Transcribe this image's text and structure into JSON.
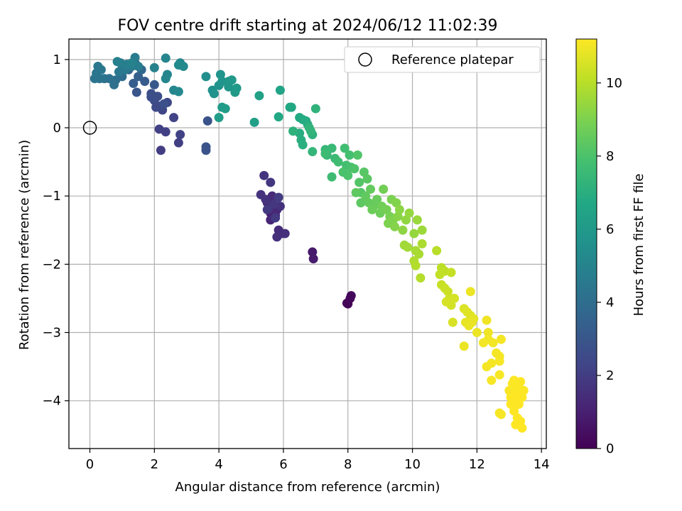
{
  "chart_data": {
    "type": "scatter",
    "title": "FOV centre drift starting at 2024/06/12 11:02:39",
    "xlabel": "Angular distance from reference (arcmin)",
    "ylabel": "Rotation from reference (arcmin)",
    "xlim": [
      -0.65,
      14.15
    ],
    "ylim": [
      -4.7,
      1.3
    ],
    "xticks": [
      0,
      2,
      4,
      6,
      8,
      10,
      12,
      14
    ],
    "yticks": [
      -4,
      -3,
      -2,
      -1,
      0,
      1
    ],
    "xtick_labels": [
      "0",
      "2",
      "4",
      "6",
      "8",
      "10",
      "12",
      "14"
    ],
    "ytick_labels": [
      "−4",
      "−3",
      "−2",
      "−1",
      "0",
      "1"
    ],
    "grid": true,
    "legend": {
      "placement": "top-right",
      "entries": [
        "Reference platepar"
      ]
    },
    "reference_point": {
      "x": 0,
      "y": 0,
      "marker": "open-circle"
    },
    "colorbar": {
      "label": "Hours from first FF file",
      "colormap": "viridis",
      "range": [
        0,
        11.2
      ],
      "ticks": [
        0,
        2,
        4,
        6,
        8,
        10
      ],
      "tick_labels": [
        "0",
        "2",
        "4",
        "6",
        "8",
        "10"
      ]
    },
    "points": [
      [
        8.0,
        -2.58,
        0.1
      ],
      [
        7.97,
        -2.57,
        0.15
      ],
      [
        8.1,
        -2.46,
        0.25
      ],
      [
        8.07,
        -2.5,
        0.2
      ],
      [
        6.9,
        -1.82,
        0.8
      ],
      [
        6.93,
        -1.92,
        0.85
      ],
      [
        5.6,
        -1.25,
        1.0
      ],
      [
        5.7,
        -1.05,
        1.1
      ],
      [
        5.8,
        -1.2,
        1.15
      ],
      [
        5.6,
        -1.35,
        1.2
      ],
      [
        5.5,
        -1.1,
        1.25
      ],
      [
        5.75,
        -1.28,
        1.3
      ],
      [
        5.65,
        -1.0,
        1.35
      ],
      [
        5.85,
        -1.5,
        1.4
      ],
      [
        5.95,
        -1.55,
        1.45
      ],
      [
        5.8,
        -1.6,
        1.5
      ],
      [
        6.05,
        -1.55,
        1.5
      ],
      [
        5.55,
        -1.18,
        1.55
      ],
      [
        5.9,
        -1.15,
        1.6
      ],
      [
        5.45,
        -1.05,
        1.6
      ],
      [
        5.3,
        -0.98,
        1.65
      ],
      [
        5.4,
        -0.7,
        1.7
      ],
      [
        5.6,
        -0.8,
        1.75
      ],
      [
        5.7,
        -1.12,
        1.8
      ],
      [
        5.5,
        -1.2,
        1.85
      ],
      [
        5.75,
        -1.32,
        1.9
      ],
      [
        5.85,
        -1.02,
        1.95
      ],
      [
        2.2,
        -0.33,
        2.0
      ],
      [
        2.75,
        -0.22,
        2.05
      ],
      [
        2.35,
        -0.06,
        2.1
      ],
      [
        2.15,
        -0.02,
        2.15
      ],
      [
        2.8,
        -0.1,
        2.2
      ],
      [
        2.6,
        0.15,
        2.25
      ],
      [
        2.25,
        0.26,
        2.3
      ],
      [
        2.4,
        0.37,
        2.4
      ],
      [
        2.2,
        0.32,
        2.45
      ],
      [
        2.05,
        0.3,
        2.5
      ],
      [
        2.0,
        0.4,
        2.55
      ],
      [
        1.9,
        0.45,
        2.6
      ],
      [
        2.1,
        0.46,
        2.65
      ],
      [
        1.9,
        0.5,
        2.7
      ],
      [
        2.3,
        0.35,
        2.75
      ],
      [
        3.6,
        -0.33,
        2.8
      ],
      [
        3.6,
        -0.28,
        2.85
      ],
      [
        3.65,
        0.1,
        2.9
      ],
      [
        1.45,
        0.52,
        3.0
      ],
      [
        2.0,
        0.63,
        3.1
      ],
      [
        1.7,
        0.68,
        3.2
      ],
      [
        1.35,
        0.65,
        3.3
      ],
      [
        1.5,
        0.75,
        3.4
      ],
      [
        1.2,
        0.85,
        3.5
      ],
      [
        1.0,
        0.92,
        3.6
      ],
      [
        1.6,
        0.85,
        3.7
      ],
      [
        1.25,
        0.9,
        3.8
      ],
      [
        1.4,
        0.95,
        3.9
      ],
      [
        1.0,
        0.75,
        4.0
      ],
      [
        0.8,
        0.7,
        4.05
      ],
      [
        0.75,
        0.63,
        4.1
      ],
      [
        0.6,
        0.72,
        4.15
      ],
      [
        0.45,
        0.72,
        4.2
      ],
      [
        0.3,
        0.72,
        4.25
      ],
      [
        0.15,
        0.72,
        4.3
      ],
      [
        0.2,
        0.8,
        4.35
      ],
      [
        0.35,
        0.85,
        4.4
      ],
      [
        0.25,
        0.9,
        4.45
      ],
      [
        0.9,
        0.82,
        4.5
      ],
      [
        1.1,
        0.85,
        4.55
      ],
      [
        1.3,
        0.9,
        4.6
      ],
      [
        1.4,
        1.03,
        4.65
      ],
      [
        1.5,
        0.9,
        4.7
      ],
      [
        1.15,
        0.93,
        4.75
      ],
      [
        0.95,
        0.95,
        4.8
      ],
      [
        0.85,
        0.97,
        4.85
      ],
      [
        2.0,
        0.88,
        4.9
      ],
      [
        1.3,
        0.95,
        4.95
      ],
      [
        2.35,
        1.02,
        5.0
      ],
      [
        2.4,
        0.78,
        5.05
      ],
      [
        2.35,
        0.72,
        5.1
      ],
      [
        2.6,
        0.55,
        5.15
      ],
      [
        2.75,
        0.53,
        5.2
      ],
      [
        2.8,
        0.95,
        5.25
      ],
      [
        2.9,
        0.9,
        5.3
      ],
      [
        2.75,
        0.92,
        5.35
      ],
      [
        3.6,
        0.75,
        5.5
      ],
      [
        3.8,
        0.55,
        5.6
      ],
      [
        3.85,
        0.5,
        5.65
      ],
      [
        4.0,
        0.62,
        5.7
      ],
      [
        4.05,
        0.78,
        5.75
      ],
      [
        4.1,
        0.68,
        5.8
      ],
      [
        4.3,
        0.6,
        5.85
      ],
      [
        4.3,
        0.68,
        5.9
      ],
      [
        4.4,
        0.7,
        5.95
      ],
      [
        4.5,
        0.52,
        6.0
      ],
      [
        4.55,
        0.58,
        6.05
      ],
      [
        4.1,
        0.3,
        6.1
      ],
      [
        4.2,
        0.28,
        6.15
      ],
      [
        4.0,
        0.15,
        6.2
      ],
      [
        5.1,
        0.08,
        6.3
      ],
      [
        5.25,
        0.47,
        6.4
      ],
      [
        5.9,
        0.55,
        6.5
      ],
      [
        6.2,
        0.3,
        6.6
      ],
      [
        6.25,
        0.3,
        6.65
      ],
      [
        5.85,
        0.16,
        6.7
      ],
      [
        6.5,
        0.15,
        6.75
      ],
      [
        6.6,
        0.12,
        6.8
      ],
      [
        6.7,
        0.1,
        6.85
      ],
      [
        6.75,
        0.05,
        6.9
      ],
      [
        6.5,
        -0.08,
        6.95
      ],
      [
        6.55,
        -0.18,
        7.0
      ],
      [
        6.6,
        -0.25,
        7.05
      ],
      [
        6.9,
        -0.1,
        7.1
      ],
      [
        6.3,
        -0.05,
        7.15
      ],
      [
        7.0,
        0.28,
        7.2
      ],
      [
        6.8,
        0.0,
        7.25
      ],
      [
        6.85,
        -0.05,
        7.3
      ],
      [
        6.9,
        -0.35,
        7.35
      ],
      [
        7.3,
        -0.32,
        7.4
      ],
      [
        7.35,
        -0.4,
        7.45
      ],
      [
        7.5,
        -0.3,
        7.5
      ],
      [
        7.6,
        -0.45,
        7.55
      ],
      [
        7.3,
        -0.38,
        7.6
      ],
      [
        7.5,
        -0.72,
        7.65
      ],
      [
        7.7,
        -0.5,
        7.7
      ],
      [
        7.9,
        -0.3,
        7.75
      ],
      [
        7.95,
        -0.55,
        7.8
      ],
      [
        8.05,
        -0.4,
        7.85
      ],
      [
        8.1,
        -0.58,
        7.9
      ],
      [
        7.85,
        -0.65,
        7.95
      ],
      [
        8.0,
        -0.7,
        8.0
      ],
      [
        8.2,
        -0.6,
        8.05
      ],
      [
        8.3,
        -0.4,
        8.1
      ],
      [
        8.35,
        -0.8,
        8.15
      ],
      [
        8.4,
        -0.95,
        8.2
      ],
      [
        8.5,
        -0.65,
        8.25
      ],
      [
        8.6,
        -0.75,
        8.3
      ],
      [
        8.4,
        -1.1,
        8.35
      ],
      [
        8.25,
        -0.95,
        8.4
      ],
      [
        8.55,
        -1.0,
        8.45
      ],
      [
        8.65,
        -1.1,
        8.5
      ],
      [
        8.7,
        -0.9,
        8.5
      ],
      [
        8.8,
        -1.15,
        8.55
      ],
      [
        8.9,
        -1.05,
        8.6
      ],
      [
        8.75,
        -1.2,
        8.65
      ],
      [
        9.0,
        -1.25,
        8.7
      ],
      [
        9.05,
        -1.15,
        8.75
      ],
      [
        9.1,
        -0.9,
        8.8
      ],
      [
        9.2,
        -1.2,
        8.85
      ],
      [
        9.3,
        -1.3,
        8.9
      ],
      [
        9.35,
        -1.05,
        8.95
      ],
      [
        9.25,
        -1.4,
        9.0
      ],
      [
        9.4,
        -1.35,
        9.05
      ],
      [
        9.5,
        -1.1,
        9.1
      ],
      [
        9.45,
        -1.45,
        9.15
      ],
      [
        9.55,
        -1.3,
        9.2
      ],
      [
        9.6,
        -1.2,
        9.25
      ],
      [
        9.7,
        -1.5,
        9.3
      ],
      [
        9.8,
        -1.35,
        9.35
      ],
      [
        9.9,
        -1.25,
        9.4
      ],
      [
        10.05,
        -1.55,
        9.45
      ],
      [
        10.15,
        -1.35,
        9.5
      ],
      [
        10.3,
        -1.5,
        9.55
      ],
      [
        9.75,
        -1.72,
        9.6
      ],
      [
        9.85,
        -1.75,
        9.65
      ],
      [
        10.1,
        -1.8,
        9.7
      ],
      [
        10.2,
        -1.85,
        9.75
      ],
      [
        10.3,
        -1.7,
        9.8
      ],
      [
        10.05,
        -1.95,
        9.85
      ],
      [
        10.1,
        -2.02,
        9.9
      ],
      [
        10.25,
        -2.2,
        9.95
      ],
      [
        10.75,
        -1.8,
        10.0
      ],
      [
        10.9,
        -2.05,
        10.05
      ],
      [
        11.0,
        -2.1,
        10.1
      ],
      [
        10.85,
        -2.15,
        10.15
      ],
      [
        11.2,
        -2.12,
        10.2
      ],
      [
        10.9,
        -2.3,
        10.25
      ],
      [
        11.0,
        -2.35,
        10.3
      ],
      [
        11.1,
        -2.4,
        10.35
      ],
      [
        11.15,
        -2.5,
        10.4
      ],
      [
        11.2,
        -2.6,
        10.45
      ],
      [
        11.05,
        -2.55,
        10.5
      ],
      [
        11.3,
        -2.5,
        10.5
      ],
      [
        11.25,
        -2.85,
        10.55
      ],
      [
        11.6,
        -2.65,
        10.6
      ],
      [
        11.7,
        -2.7,
        10.65
      ],
      [
        11.8,
        -2.75,
        10.7
      ],
      [
        11.9,
        -2.8,
        10.75
      ],
      [
        11.65,
        -2.85,
        10.8
      ],
      [
        11.75,
        -2.9,
        10.85
      ],
      [
        11.85,
        -2.85,
        10.85
      ],
      [
        11.6,
        -3.2,
        10.9
      ],
      [
        12.0,
        -3.0,
        10.9
      ],
      [
        11.8,
        -2.4,
        10.9
      ],
      [
        12.3,
        -2.82,
        10.95
      ],
      [
        12.35,
        -3.0,
        10.95
      ],
      [
        12.2,
        -3.15,
        11.0
      ],
      [
        12.35,
        -3.1,
        11.0
      ],
      [
        12.5,
        -3.15,
        11.0
      ],
      [
        12.6,
        -3.3,
        11.05
      ],
      [
        12.7,
        -3.35,
        11.05
      ],
      [
        12.75,
        -3.1,
        11.05
      ],
      [
        12.3,
        -3.5,
        11.05
      ],
      [
        12.45,
        -3.45,
        11.05
      ],
      [
        12.7,
        -3.42,
        11.1
      ],
      [
        12.45,
        -3.7,
        11.1
      ],
      [
        12.7,
        -3.62,
        11.1
      ],
      [
        12.75,
        -4.2,
        11.1
      ],
      [
        12.7,
        -4.18,
        11.1
      ],
      [
        13.0,
        -3.85,
        11.12
      ],
      [
        13.05,
        -3.95,
        11.14
      ],
      [
        13.1,
        -3.75,
        11.15
      ],
      [
        13.15,
        -3.7,
        11.16
      ],
      [
        13.2,
        -3.85,
        11.17
      ],
      [
        13.25,
        -3.75,
        11.18
      ],
      [
        13.3,
        -3.8,
        11.18
      ],
      [
        13.35,
        -3.72,
        11.19
      ],
      [
        13.45,
        -3.85,
        11.19
      ],
      [
        13.4,
        -3.95,
        11.19
      ],
      [
        13.3,
        -4.05,
        11.2
      ],
      [
        13.2,
        -4.0,
        11.2
      ],
      [
        13.1,
        -3.95,
        11.2
      ],
      [
        13.05,
        -4.05,
        11.2
      ],
      [
        13.15,
        -4.15,
        11.2
      ],
      [
        13.25,
        -4.25,
        11.2
      ],
      [
        13.2,
        -4.35,
        11.2
      ],
      [
        13.35,
        -4.3,
        11.2
      ],
      [
        13.4,
        -4.4,
        11.2
      ],
      [
        13.3,
        -3.9,
        11.2
      ],
      [
        13.1,
        -4.0,
        11.2
      ]
    ]
  }
}
